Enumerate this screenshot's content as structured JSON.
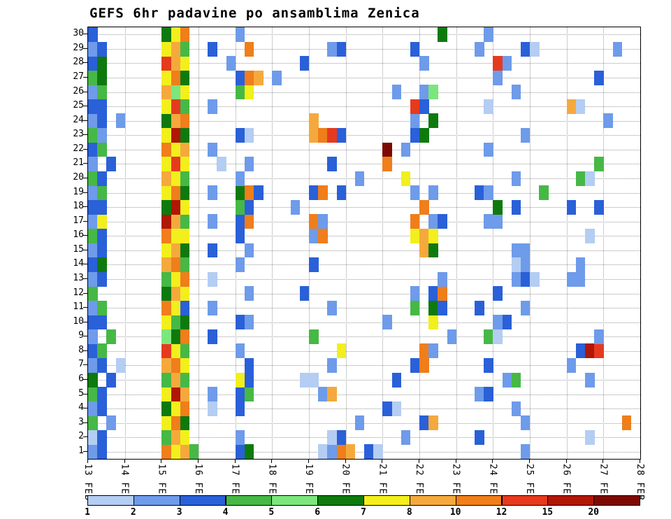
{
  "title": "GEFS 6hr padavine po ansamblima Zenica",
  "chart_data": {
    "type": "heatmap",
    "title": "GEFS 6hr padavine po ansamblima Zenica",
    "x_axis": {
      "tick_labels": [
        "13 FEB",
        "14 FEB",
        "15 FEB",
        "16 FEB",
        "17 FEB",
        "18 FEB",
        "19 FEB",
        "20 FEB",
        "21 FEB",
        "22 FEB",
        "23 FEB",
        "24 FEB",
        "25 FEB",
        "26 FEB",
        "27 FEB",
        "28 FEB"
      ],
      "cells_per_day": 4,
      "total_columns": 60
    },
    "y_axis": {
      "tick_labels": [
        "1",
        "2",
        "3",
        "4",
        "5",
        "6",
        "7",
        "8",
        "9",
        "10",
        "11",
        "12",
        "13",
        "14",
        "15",
        "16",
        "17",
        "18",
        "19",
        "20",
        "21",
        "22",
        "23",
        "24",
        "25",
        "26",
        "27",
        "28",
        "29",
        "30"
      ]
    },
    "legend": {
      "tick_labels": [
        "1",
        "2",
        "3",
        "4",
        "5",
        "6",
        "7",
        "8",
        "10",
        "12",
        "15",
        "20"
      ],
      "levels_mm": [
        1,
        2,
        3,
        4,
        5,
        6,
        7,
        8,
        10,
        12,
        15,
        20
      ],
      "colors": [
        "#b4cdf2",
        "#6e9bea",
        "#2a60d8",
        "#46b846",
        "#7ce67c",
        "#0e7a0e",
        "#f2ef1d",
        "#f5a93d",
        "#ef7e1b",
        "#e63a1f",
        "#b01705",
        "#7c0a02"
      ]
    },
    "cell_encoding": "per-row 60-char string, '.'=no precip, '1'-'9','a','b','c' = legend color bins 1-12; rows[0]=member 1 (bottom row), rows[29]=member 30 (top row); each row stored as six 10-char blocks",
    "rows": [
      [
        "23......97",
        "84....36..",
        ".....1298.",
        "31........",
        ".......2..",
        ".........."
      ],
      [
        "13......48",
        "7.....2...",
        "......13..",
        "....2.....",
        "..3.......",
        "....1....."
      ],
      [
        "4.2.....79",
        "6.........",
        ".........2",
        "......38..",
        ".......2..",
        "........9."
      ],
      [
        "23......67",
        "9..1..3...",
        "..........",
        "..31......",
        "......2...",
        ".........."
      ],
      [
        "43......7b",
        "8..2..34..",
        ".....28...",
        "..........",
        "..23......",
        ".........."
      ],
      [
        "6.3.....48",
        "4.....73..",
        "...11.....",
        "...3......",
        ".....24...",
        "....2....."
      ],
      [
        "23.1....89",
        "7......3..",
        "......2...",
        ".....39...",
        "...3......",
        "..2......."
      ],
      [
        "34......a7",
        "4.....2...",
        ".......7..",
        "......92..",
        "..........",
        "...3ba...."
      ],
      [
        "2.4.....56",
        "9..3......",
        "....4.....",
        ".........2",
        "...41.....",
        ".....2...."
      ],
      [
        "33......74",
        "6.....32..",
        "..........",
        "..2....7..",
        "....23....",
        ".........."
      ],
      [
        "24......97",
        "3..2......",
        "......2...",
        ".....4.63.",
        "..3....2..",
        ".........."
      ],
      [
        "4.......68",
        "7......2..",
        "...3......",
        ".....2.39.",
        "....3.....",
        ".........."
      ],
      [
        "23......47",
        "9..1......",
        "..........",
        "........2.",
        "......231.",
        "..22......"
      ],
      [
        "36......89",
        "4.....2...",
        "....3.....",
        "..........",
        "......12..",
        "...2......"
      ],
      [
        "23......78",
        "6..3...2..",
        "..........",
        "......86..",
        "......22..",
        ".........."
      ],
      [
        "43......97",
        "7.....3...",
        "....29....",
        ".....787..",
        "..........",
        "....1....."
      ],
      [
        "27......b8",
        "4..2..39..",
        "....92....",
        ".....9.23.",
        "...22.....",
        ".........."
      ],
      [
        "33......6b",
        "7.....43..",
        "..2.......",
        "......9...",
        "....6.3...",
        "..3..3...."
      ],
      [
        "24......79",
        "6..2..693.",
        "....39.3..",
        ".....2.2..",
        "..32.....4",
        ".........."
      ],
      [
        "43......87",
        "4.....2...",
        ".........2",
        "....7.....",
        "......2...",
        "...41....."
      ],
      [
        "2.3.....7a",
        "7...1..2..",
        "......3...",
        "..9.......",
        "..........",
        ".....4...."
      ],
      [
        "34......97",
        "8..2......",
        "..........",
        "..c.2.....",
        "...2......",
        ".........."
      ],
      [
        "42......7b",
        "6.....31..",
        "....89a3..",
        ".....36...",
        ".......2..",
        ".........."
      ],
      [
        "23.2....68",
        "9.........",
        "....8.....",
        ".....2.6..",
        "..........",
        "......2..."
      ],
      [
        "33......7a",
        "4..2......",
        "..........",
        ".....a3...",
        "...1......",
        "..81......"
      ],
      [
        "24......85",
        "7.....47..",
        "..........",
        "...2..25..",
        "......2...",
        ".........."
      ],
      [
        "46......79",
        "6.....398.",
        "2.........",
        "..........",
        "....2.....",
        ".....3...."
      ],
      [
        "36......a8",
        "7....2....",
        "...3......",
        "......2...",
        "....a2....",
        ".........."
      ],
      [
        "23......78",
        "4..3...9..",
        "......23..",
        ".....3....",
        "..2....31.",
        ".......2.."
      ],
      [
        "3.......67",
        "9.....2...",
        "..........",
        "........6.",
        "...2......",
        ".........."
      ]
    ]
  },
  "style": {
    "background": "#ffffff",
    "axis_color": "#000000",
    "grid_color": "#9b9b9b"
  }
}
